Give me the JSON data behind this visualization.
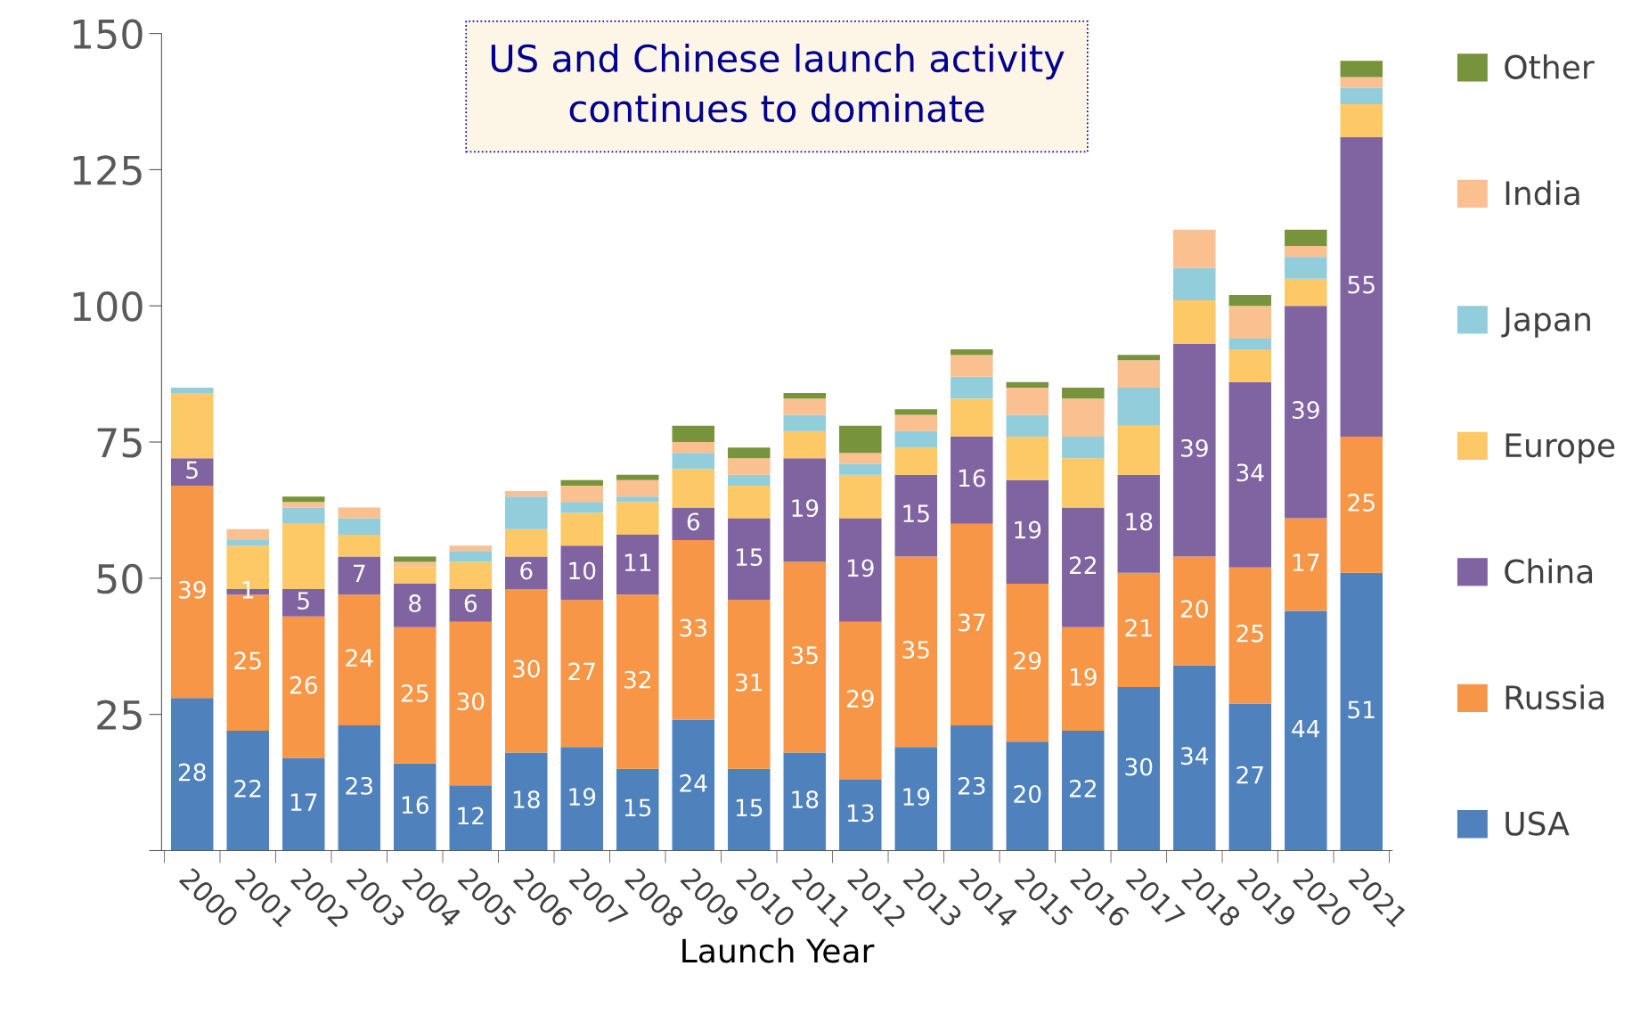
{
  "chart_data": {
    "type": "bar",
    "stacked": true,
    "title": "US and Chinese launch activity\ncontinues to dominate",
    "xlabel": "Launch Year",
    "categories": [
      "2000",
      "2001",
      "2002",
      "2003",
      "2004",
      "2005",
      "2006",
      "2007",
      "2008",
      "2009",
      "2010",
      "2011",
      "2012",
      "2013",
      "2014",
      "2015",
      "2016",
      "2017",
      "2018",
      "2019",
      "2020",
      "2021"
    ],
    "series": [
      {
        "name": "USA",
        "color": "#4f81bd",
        "values": [
          28,
          22,
          17,
          23,
          16,
          12,
          18,
          19,
          15,
          24,
          15,
          18,
          13,
          19,
          23,
          20,
          22,
          30,
          34,
          27,
          44,
          51
        ],
        "value_labels": [
          "28",
          "22",
          "17",
          "23",
          "16",
          "12",
          "18",
          "19",
          "15",
          "24",
          "15",
          "18",
          "13",
          "19",
          "23",
          "20",
          "22",
          "30",
          "34",
          "27",
          "44",
          "51"
        ]
      },
      {
        "name": "Russia",
        "color": "#f79646",
        "values": [
          39,
          25,
          26,
          24,
          25,
          30,
          30,
          27,
          32,
          33,
          31,
          35,
          29,
          35,
          37,
          29,
          19,
          21,
          20,
          25,
          17,
          25
        ],
        "value_labels": [
          "39",
          "25",
          "26",
          "24",
          "25",
          "30",
          "30",
          "27",
          "32",
          "33",
          "31",
          "35",
          "29",
          "35",
          "37",
          "29",
          "19",
          "21",
          "20",
          "25",
          "17",
          "25"
        ]
      },
      {
        "name": "China",
        "color": "#8064a2",
        "values": [
          5,
          1,
          5,
          7,
          8,
          6,
          6,
          10,
          11,
          6,
          15,
          19,
          19,
          15,
          16,
          19,
          22,
          18,
          39,
          34,
          39,
          55
        ],
        "value_labels": [
          "5",
          "1",
          "5",
          "7",
          "8",
          "6",
          "6",
          "10",
          "11",
          "6",
          "15",
          "19",
          "19",
          "15",
          "16",
          "19",
          "22",
          "18",
          "39",
          "34",
          "39",
          "55"
        ]
      },
      {
        "name": "Europe",
        "color": "#fdc966",
        "values": [
          12,
          8,
          12,
          4,
          3,
          5,
          5,
          6,
          6,
          7,
          6,
          5,
          8,
          5,
          7,
          8,
          9,
          9,
          8,
          6,
          5,
          6
        ]
      },
      {
        "name": "Japan",
        "color": "#92cddc",
        "values": [
          1,
          1,
          3,
          3,
          0,
          2,
          6,
          2,
          1,
          3,
          2,
          3,
          2,
          3,
          4,
          4,
          4,
          7,
          6,
          2,
          4,
          3
        ]
      },
      {
        "name": "India",
        "color": "#fac090",
        "values": [
          0,
          2,
          1,
          2,
          1,
          1,
          1,
          3,
          3,
          2,
          3,
          3,
          2,
          3,
          4,
          5,
          7,
          5,
          7,
          6,
          2,
          2
        ]
      },
      {
        "name": "Other",
        "color": "#77933c",
        "values": [
          0,
          0,
          1,
          0,
          1,
          0,
          0,
          1,
          1,
          3,
          2,
          1,
          5,
          1,
          1,
          1,
          2,
          1,
          0,
          2,
          3,
          3
        ]
      }
    ],
    "ylim": [
      0,
      150
    ],
    "yticks": [
      {
        "value": 0,
        "label": null
      },
      25,
      50,
      75,
      100,
      125,
      150
    ],
    "legend": "right",
    "grid": false
  }
}
